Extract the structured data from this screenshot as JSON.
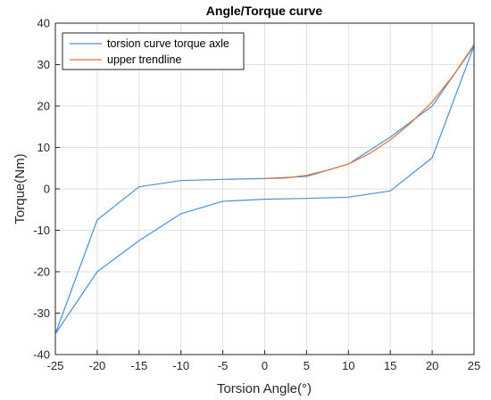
{
  "chart_data": {
    "type": "line",
    "title": "Angle/Torque curve",
    "xlabel": "Torsion Angle(°)",
    "ylabel": "Torque(Nm)",
    "xlim": [
      -25,
      25
    ],
    "ylim": [
      -40,
      40
    ],
    "xticks": [
      -25,
      -20,
      -15,
      -10,
      -5,
      0,
      5,
      10,
      15,
      20,
      25
    ],
    "yticks": [
      -40,
      -30,
      -20,
      -10,
      0,
      10,
      20,
      30,
      40
    ],
    "xtick_labels": [
      "-25",
      "-20",
      "-15",
      "-10",
      "-5",
      "0",
      "5",
      "10",
      "15",
      "20",
      "25"
    ],
    "ytick_labels": [
      "-40",
      "-30",
      "-20",
      "-10",
      "0",
      "10",
      "20",
      "30",
      "40"
    ],
    "grid": true,
    "legend_position": "top-left",
    "series": [
      {
        "name": "torsion curve torque axle",
        "color": "#4a90d9",
        "points": [
          [
            -25,
            -35
          ],
          [
            -20,
            -7.5
          ],
          [
            -15,
            0.5
          ],
          [
            -10,
            2
          ],
          [
            -5,
            2.3
          ],
          [
            0,
            2.5
          ],
          [
            5,
            3
          ],
          [
            10,
            6
          ],
          [
            15,
            12.5
          ],
          [
            20,
            20
          ],
          [
            25,
            34.5
          ],
          [
            20,
            7.5
          ],
          [
            15,
            -0.5
          ],
          [
            10,
            -2
          ],
          [
            5,
            -2.3
          ],
          [
            0,
            -2.5
          ],
          [
            -5,
            -3
          ],
          [
            -10,
            -6
          ],
          [
            -15,
            -12.5
          ],
          [
            -20,
            -20
          ],
          [
            -25,
            -35
          ]
        ]
      },
      {
        "name": "upper trendline",
        "color": "#e0733a",
        "points": [
          [
            0,
            2.5
          ],
          [
            2.5,
            2.6
          ],
          [
            5,
            3.3
          ],
          [
            7.5,
            4.5
          ],
          [
            10,
            6
          ],
          [
            12.5,
            8.5
          ],
          [
            15,
            11.8
          ],
          [
            17.5,
            16
          ],
          [
            20,
            21
          ],
          [
            22.5,
            27.3
          ],
          [
            25,
            34.8
          ]
        ]
      }
    ]
  }
}
